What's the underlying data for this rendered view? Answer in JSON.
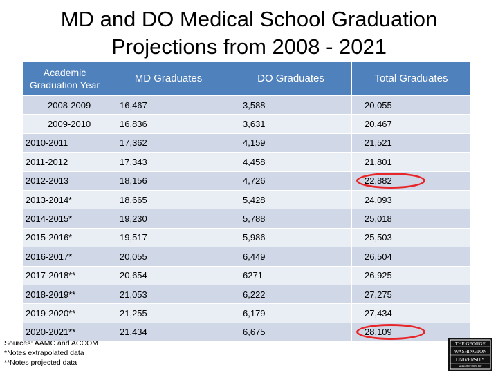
{
  "title": {
    "line1": "MD and DO Medical School Graduation",
    "line2": "Projections from 2008 - 2021"
  },
  "table": {
    "headers": [
      "Academic Graduation Year",
      "MD Graduates",
      "DO Graduates",
      "Total Graduates"
    ],
    "rows": [
      {
        "year": "2008-2009",
        "md": "16,467",
        "do": "3,588",
        "total": "20,055"
      },
      {
        "year": "2009-2010",
        "md": "16,836",
        "do": "3,631",
        "total": "20,467"
      },
      {
        "year": "2010-2011",
        "md": "17,362",
        "do": "4,159",
        "total": "21,521"
      },
      {
        "year": "2011-2012",
        "md": "17,343",
        "do": "4,458",
        "total": "21,801"
      },
      {
        "year": "2012-2013",
        "md": "18,156",
        "do": "4,726",
        "total": "22,882"
      },
      {
        "year": "2013-2014*",
        "md": "18,665",
        "do": "5,428",
        "total": "24,093"
      },
      {
        "year": "2014-2015*",
        "md": "19,230",
        "do": "5,788",
        "total": "25,018"
      },
      {
        "year": "2015-2016*",
        "md": "19,517",
        "do": "5,986",
        "total": "25,503"
      },
      {
        "year": "2016-2017*",
        "md": "20,055",
        "do": "6,449",
        "total": "26,504"
      },
      {
        "year": "2017-2018**",
        "md": "20,654",
        "do": "6271",
        "total": "26,925"
      },
      {
        "year": "2018-2019**",
        "md": "21,053",
        "do": "6,222",
        "total": "27,275"
      },
      {
        "year": "2019-2020**",
        "md": "21,255",
        "do": "6,179",
        "total": "27,434"
      },
      {
        "year": "2020-2021**",
        "md": "21,434",
        "do": "6,675",
        "total": "28,109"
      }
    ]
  },
  "notes": {
    "line1": "Sources: AAMC and ACCOM",
    "line2": "*Notes extrapolated data",
    "line3": "**Notes projected data"
  },
  "logo": {
    "line1": "THE GEORGE",
    "line2": "WASHINGTON",
    "line3": "UNIVERSITY",
    "line4": "WASHINGTON DC"
  },
  "colors": {
    "header_bg": "#4f81bd",
    "row_odd": "#d0d8e8",
    "row_even": "#e9edf4",
    "highlight_circle": "#e8262a"
  }
}
